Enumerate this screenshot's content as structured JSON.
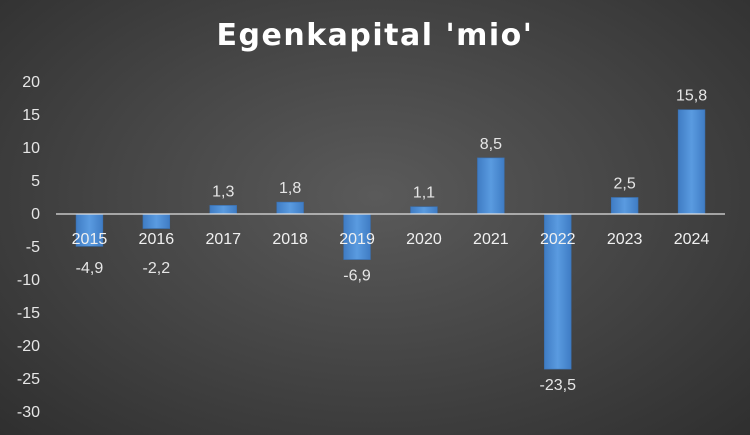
{
  "chart_data": {
    "type": "bar",
    "title": "Egenkapital 'mio'",
    "categories": [
      "2015",
      "2016",
      "2017",
      "2018",
      "2019",
      "2020",
      "2021",
      "2022",
      "2023",
      "2024"
    ],
    "values": [
      -4.9,
      -2.2,
      1.3,
      1.8,
      -6.9,
      1.1,
      8.5,
      -23.5,
      2.5,
      15.8
    ],
    "value_labels": [
      "-4,9",
      "-2,2",
      "1,3",
      "1,8",
      "-6,9",
      "1,1",
      "8,5",
      "-23,5",
      "2,5",
      "15,8"
    ],
    "ylim": [
      -30,
      20
    ],
    "yticks": [
      20,
      15,
      10,
      5,
      0,
      -5,
      -10,
      -15,
      -20,
      -25,
      -30
    ],
    "xlabel": "",
    "ylabel": "",
    "grid": false,
    "legend": "none",
    "bar_color": "#4f8fd6"
  }
}
